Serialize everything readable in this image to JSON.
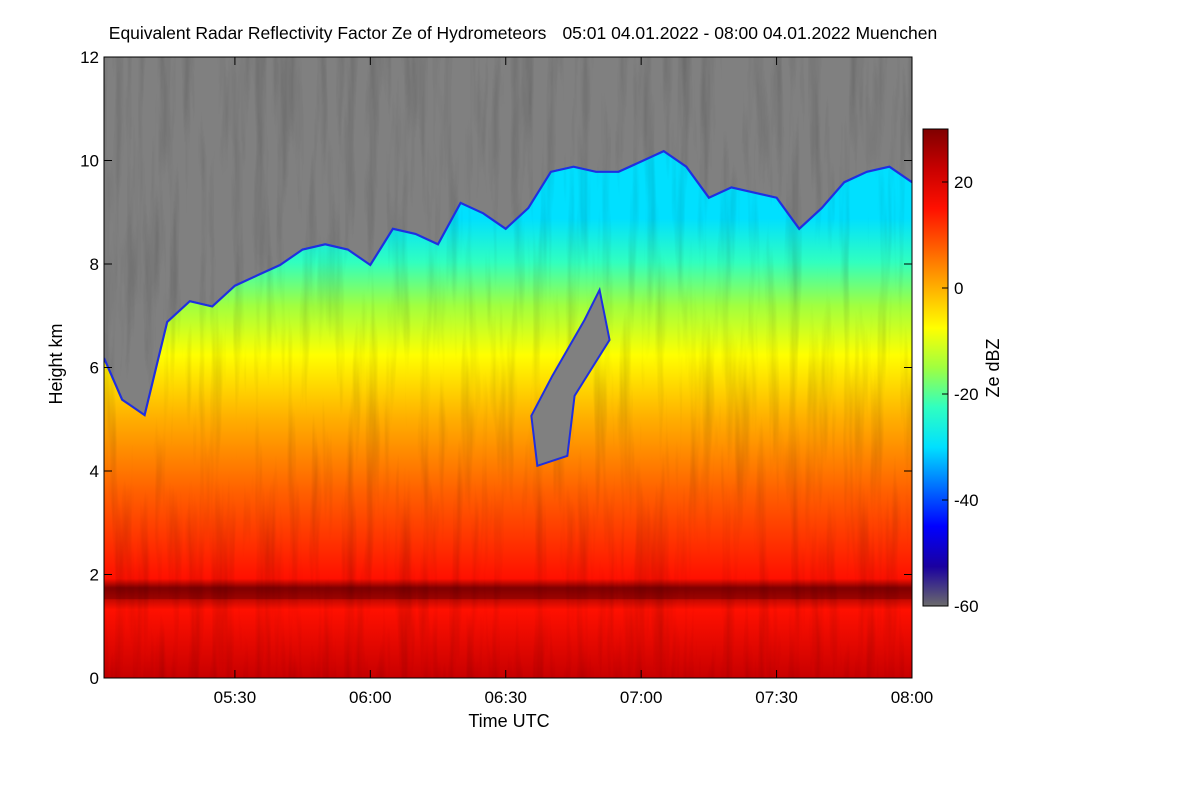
{
  "chart_data": {
    "type": "heatmap",
    "title": "Equivalent Radar Reflectivity Factor Ze of Hydrometeors",
    "time_range": "05:01 04.01.2022 - 08:00 04.01.2022",
    "location": "Muenchen",
    "xlabel": "Time UTC",
    "ylabel": "Height km",
    "colorbar_label": "Ze dBZ",
    "x_range": [
      "05:01",
      "08:00"
    ],
    "x_ticks": [
      "05:30",
      "06:00",
      "06:30",
      "07:00",
      "07:30",
      "08:00"
    ],
    "ylim": [
      0,
      12
    ],
    "y_ticks": [
      "0",
      "2",
      "4",
      "6",
      "8",
      "10",
      "12"
    ],
    "colorbar_range": [
      -60,
      30
    ],
    "colorbar_ticks": [
      "20",
      "0",
      "-20",
      "-40",
      "-60"
    ],
    "no_signal_color": "#808080",
    "colormap": [
      "#6b6b6b",
      "#1a00a0",
      "#0000ff",
      "#0070ff",
      "#00e0ff",
      "#30ffc0",
      "#a0ff40",
      "#ffff00",
      "#ffb000",
      "#ff6000",
      "#ff1000",
      "#c80000",
      "#800000"
    ],
    "echo_top_km": [
      [
        "05:01",
        6.2
      ],
      [
        "05:05",
        5.4
      ],
      [
        "05:10",
        5.1
      ],
      [
        "05:15",
        6.9
      ],
      [
        "05:20",
        7.3
      ],
      [
        "05:25",
        7.2
      ],
      [
        "05:30",
        7.6
      ],
      [
        "05:35",
        7.8
      ],
      [
        "05:40",
        8.0
      ],
      [
        "05:45",
        8.3
      ],
      [
        "05:50",
        8.4
      ],
      [
        "05:55",
        8.3
      ],
      [
        "06:00",
        8.0
      ],
      [
        "06:05",
        8.7
      ],
      [
        "06:10",
        8.6
      ],
      [
        "06:15",
        8.4
      ],
      [
        "06:20",
        9.2
      ],
      [
        "06:25",
        9.0
      ],
      [
        "06:30",
        8.7
      ],
      [
        "06:35",
        9.1
      ],
      [
        "06:40",
        9.8
      ],
      [
        "06:45",
        9.9
      ],
      [
        "06:50",
        9.8
      ],
      [
        "06:55",
        9.8
      ],
      [
        "07:00",
        10.0
      ],
      [
        "07:05",
        10.2
      ],
      [
        "07:10",
        9.9
      ],
      [
        "07:15",
        9.3
      ],
      [
        "07:20",
        9.5
      ],
      [
        "07:25",
        9.4
      ],
      [
        "07:30",
        9.3
      ],
      [
        "07:35",
        8.7
      ],
      [
        "07:40",
        9.1
      ],
      [
        "07:45",
        9.6
      ],
      [
        "07:50",
        9.8
      ],
      [
        "07:55",
        9.9
      ],
      [
        "08:00",
        9.6
      ]
    ],
    "bright_band_km": 1.6,
    "gap_region": {
      "time_from": "06:37",
      "time_to": "06:53",
      "height_from_km": 4.1,
      "height_to_km": 7.5
    }
  }
}
